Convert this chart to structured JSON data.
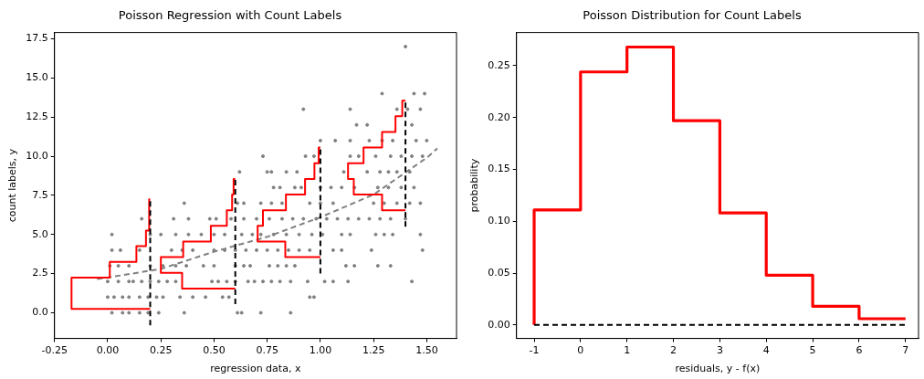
{
  "chart_data": [
    {
      "type": "scatter",
      "title": "Poisson Regression with Count Labels",
      "xlabel": "regression data, x",
      "ylabel": "count labels, y",
      "xlim": [
        -0.25,
        1.64
      ],
      "ylim": [
        -1.64,
        17.9
      ],
      "xticks": [
        -0.25,
        {
          "value": 0,
          "label": "0.00"
        },
        0.25,
        {
          "value": 0.5,
          "label": "0.50"
        },
        0.75,
        {
          "value": 1,
          "label": "1.00"
        },
        1.25,
        {
          "value": 1.5,
          "label": "1.50"
        }
      ],
      "yticks": [
        {
          "value": 0,
          "label": "0.0"
        },
        2.5,
        {
          "value": 5,
          "label": "5.0"
        },
        7.5,
        {
          "value": 10,
          "label": "10.0"
        },
        12.5,
        {
          "value": 15,
          "label": "15.0"
        },
        17.5
      ],
      "grid": false,
      "legend": false,
      "series": [
        {
          "color": "#808080",
          "marker": "circle",
          "x": [
            0.02,
            0.07,
            0.1,
            0.15,
            0.19,
            0.24,
            0.36,
            0.61,
            0.63,
            0.72,
            0.86,
            0.0,
            0.03,
            0.07,
            0.1,
            0.15,
            0.19,
            0.23,
            0.26,
            0.34,
            0.4,
            0.46,
            0.54,
            0.57,
            0.95,
            0.97,
            0.0,
            0.05,
            0.1,
            0.12,
            0.16,
            0.2,
            0.24,
            0.28,
            0.32,
            0.49,
            0.52,
            0.56,
            0.6,
            0.66,
            0.69,
            0.73,
            0.77,
            0.81,
            0.86,
            0.94,
            1.02,
            1.06,
            1.13,
            1.43,
            0.01,
            0.05,
            0.1,
            0.2,
            0.26,
            0.32,
            0.37,
            0.45,
            0.5,
            0.6,
            0.64,
            0.67,
            0.76,
            0.8,
            0.84,
            0.88,
            1.12,
            1.16,
            1.27,
            1.33,
            0.02,
            0.06,
            0.15,
            0.3,
            0.35,
            0.4,
            0.5,
            0.55,
            0.6,
            0.65,
            0.7,
            0.75,
            0.8,
            0.85,
            0.9,
            0.95,
            1.06,
            1.1,
            1.24,
            1.48,
            0.02,
            0.2,
            0.25,
            0.32,
            0.38,
            0.44,
            0.5,
            0.55,
            0.63,
            0.68,
            0.72,
            0.78,
            0.84,
            0.9,
            0.96,
            1.01,
            1.1,
            1.14,
            1.26,
            1.3,
            1.34,
            1.47,
            0.16,
            0.31,
            0.38,
            0.48,
            0.51,
            0.58,
            0.64,
            0.7,
            0.76,
            0.82,
            0.87,
            0.92,
            0.98,
            1.03,
            1.08,
            1.13,
            1.18,
            1.23,
            1.28,
            1.33,
            1.4,
            0.36,
            0.61,
            0.64,
            0.72,
            0.77,
            0.82,
            0.95,
            1.0,
            1.06,
            1.25,
            1.3,
            1.36,
            1.42,
            1.47,
            0.78,
            0.81,
            0.88,
            0.91,
            1.0,
            1.05,
            1.1,
            1.16,
            1.27,
            1.32,
            1.38,
            1.44,
            0.62,
            0.75,
            0.77,
            0.84,
            0.89,
            1.11,
            1.22,
            1.28,
            1.32,
            1.36,
            1.42,
            0.73,
            0.93,
            0.97,
            1.14,
            1.18,
            1.26,
            1.33,
            1.38,
            1.43,
            1.48,
            1.0,
            1.07,
            1.14,
            1.23,
            1.29,
            1.34,
            1.45,
            1.5,
            1.17,
            1.22,
            1.43,
            0.92,
            1.14,
            1.36,
            1.41,
            1.47,
            1.29,
            1.44,
            1.49,
            1.4
          ],
          "values": [
            0,
            0,
            0,
            0,
            0,
            0,
            0,
            0,
            0,
            0,
            0,
            1,
            1,
            1,
            1,
            1,
            1,
            1,
            1,
            1,
            1,
            1,
            1,
            1,
            1,
            1,
            2,
            2,
            2,
            2,
            2,
            2,
            2,
            2,
            2,
            2,
            2,
            2,
            2,
            2,
            2,
            2,
            2,
            2,
            2,
            2,
            2,
            2,
            2,
            2,
            3,
            3,
            3,
            3,
            3,
            3,
            3,
            3,
            3,
            3,
            3,
            3,
            3,
            3,
            3,
            3,
            3,
            3,
            3,
            3,
            4,
            4,
            4,
            4,
            4,
            4,
            4,
            4,
            4,
            4,
            4,
            4,
            4,
            4,
            4,
            4,
            4,
            4,
            4,
            4,
            5,
            5,
            5,
            5,
            5,
            5,
            5,
            5,
            5,
            5,
            5,
            5,
            5,
            5,
            5,
            5,
            5,
            5,
            5,
            5,
            5,
            5,
            6,
            6,
            6,
            6,
            6,
            6,
            6,
            6,
            6,
            6,
            6,
            6,
            6,
            6,
            6,
            6,
            6,
            6,
            6,
            6,
            6,
            7,
            7,
            7,
            7,
            7,
            7,
            7,
            7,
            7,
            7,
            7,
            7,
            7,
            7,
            8,
            8,
            8,
            8,
            8,
            8,
            8,
            8,
            8,
            8,
            8,
            8,
            9,
            9,
            9,
            9,
            9,
            9,
            9,
            9,
            9,
            9,
            9,
            10,
            10,
            10,
            10,
            10,
            10,
            10,
            10,
            10,
            10,
            11,
            11,
            11,
            11,
            11,
            11,
            11,
            11,
            12,
            12,
            12,
            13,
            13,
            13,
            13,
            13,
            14,
            14,
            14,
            17
          ]
        },
        {
          "type": "line",
          "color": "#808080",
          "line_style": "dashed",
          "marker": "none",
          "x": [
            -0.05,
            0,
            0.25,
            0.5,
            0.75,
            1.0,
            1.25,
            1.5,
            1.55
          ],
          "values": [
            2.15,
            2.25,
            2.8,
            3.9,
            4.85,
            6.1,
            7.55,
            9.9,
            10.5
          ]
        },
        {
          "type": "line",
          "color": "#ff0000",
          "marker": "none",
          "x": [
            0.2,
            -0.17,
            -0.17,
            0.01,
            0.01,
            0.135,
            0.135,
            0.18,
            0.18,
            0.195,
            0.195,
            0.2
          ],
          "values": [
            0.25,
            0.25,
            2.25,
            2.25,
            3.25,
            3.25,
            4.25,
            4.25,
            5.25,
            5.25,
            7.25,
            7.25
          ]
        },
        {
          "type": "line",
          "color": "#ff0000",
          "marker": "none",
          "x": [
            0.6,
            0.35,
            0.35,
            0.25,
            0.25,
            0.355,
            0.355,
            0.485,
            0.485,
            0.56,
            0.56,
            0.585,
            0.585,
            0.592,
            0.592,
            0.6
          ],
          "values": [
            1.55,
            1.55,
            2.55,
            2.55,
            3.55,
            3.55,
            4.55,
            4.55,
            5.55,
            5.55,
            6.55,
            6.55,
            7.55,
            7.55,
            8.55,
            8.55
          ]
        },
        {
          "type": "line",
          "color": "#ff0000",
          "marker": "none",
          "x": [
            1.0,
            0.835,
            0.835,
            0.705,
            0.705,
            0.73,
            0.73,
            0.838,
            0.838,
            0.928,
            0.928,
            0.972,
            0.972,
            0.992,
            0.992,
            1.0
          ],
          "values": [
            3.55,
            3.55,
            4.55,
            4.55,
            5.55,
            5.55,
            6.55,
            6.55,
            7.55,
            7.55,
            8.55,
            8.55,
            9.55,
            9.55,
            10.55,
            10.55
          ]
        },
        {
          "type": "line",
          "color": "#ff0000",
          "marker": "none",
          "x": [
            1.4,
            1.29,
            1.29,
            1.157,
            1.157,
            1.13,
            1.13,
            1.203,
            1.203,
            1.29,
            1.29,
            1.353,
            1.353,
            1.385,
            1.385,
            1.4
          ],
          "values": [
            6.55,
            6.55,
            7.55,
            7.55,
            8.55,
            8.55,
            9.55,
            9.55,
            10.55,
            10.55,
            11.55,
            11.55,
            12.55,
            12.55,
            13.55,
            13.55
          ]
        },
        {
          "type": "line",
          "color": "#000000",
          "line_style": "dashed",
          "marker": "none",
          "x": [
            0.2,
            0.2
          ],
          "values": [
            -0.8,
            7.25
          ]
        },
        {
          "type": "line",
          "color": "#000000",
          "line_style": "dashed",
          "marker": "none",
          "x": [
            0.6,
            0.6
          ],
          "values": [
            0.55,
            8.55
          ]
        },
        {
          "type": "line",
          "color": "#000000",
          "line_style": "dashed",
          "marker": "none",
          "x": [
            1.0,
            1.0
          ],
          "values": [
            2.5,
            10.55
          ]
        },
        {
          "type": "line",
          "color": "#000000",
          "line_style": "dashed",
          "marker": "none",
          "x": [
            1.4,
            1.4
          ],
          "values": [
            5.5,
            13.55
          ]
        }
      ]
    },
    {
      "type": "step",
      "title": "Poisson Distribution for Count Labels",
      "xlabel": "residuals, y - f(x)",
      "ylabel": "probability",
      "xlim": [
        -1.38,
        7.28
      ],
      "ylim": [
        -0.013,
        0.282
      ],
      "xticks": [
        -1,
        0,
        1,
        2,
        3,
        4,
        5,
        6,
        7
      ],
      "yticks": [
        {
          "value": 0,
          "label": "0.00"
        },
        0.05,
        {
          "value": 0.1,
          "label": "0.10"
        },
        0.15,
        {
          "value": 0.2,
          "label": "0.20"
        },
        0.25
      ],
      "grid": false,
      "legend": false,
      "series": [
        {
          "color": "#ff0000",
          "marker": "none",
          "x": [
            -1,
            -1,
            0,
            1,
            2,
            3,
            4,
            5,
            6,
            7
          ],
          "values": [
            0,
            0.111,
            0.244,
            0.268,
            0.197,
            0.108,
            0.048,
            0.018,
            0.006,
            0.006
          ]
        },
        {
          "type": "line",
          "color": "#000000",
          "line_style": "dashed",
          "marker": "none",
          "x": [
            -1,
            7
          ],
          "values": [
            0,
            0
          ]
        }
      ]
    }
  ]
}
